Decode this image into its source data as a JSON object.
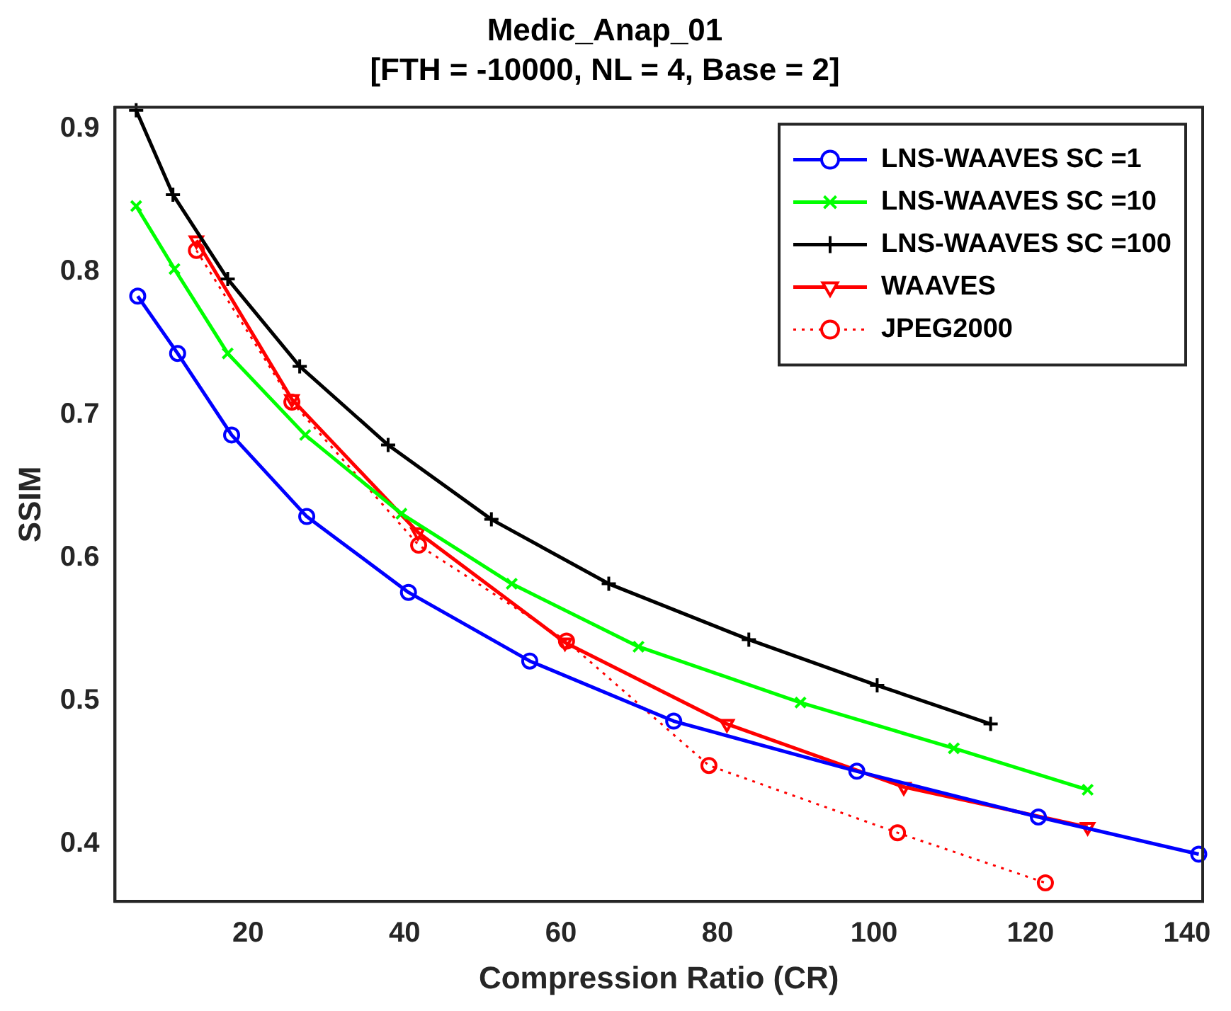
{
  "chart_data": {
    "type": "line",
    "title": "Medic_Anap_01",
    "subtitle": "[FTH = -10000, NL = 4, Base = 2]",
    "xlabel": "Compression Ratio (CR)",
    "ylabel": "SSIM",
    "xlim": [
      3,
      142
    ],
    "xticks": [
      20,
      40,
      60,
      80,
      100,
      120,
      140
    ],
    "ylim": [
      0.36,
      0.915
    ],
    "yticks": [
      0.4,
      0.5,
      0.6,
      0.7,
      0.8,
      0.9
    ],
    "grid": false,
    "legend": "top right",
    "series": [
      {
        "name": "LNS-WAAVES SC =1",
        "color": "#0000ff",
        "marker": "circle",
        "line_style": "solid",
        "x": [
          5.9,
          11,
          17.9,
          27.5,
          40.5,
          56,
          74.4,
          97.8,
          121,
          141.5
        ],
        "values": [
          0.783,
          0.743,
          0.686,
          0.629,
          0.576,
          0.528,
          0.486,
          0.451,
          0.419,
          0.393
        ]
      },
      {
        "name": "LNS-WAAVES SC =10",
        "color": "#00ff00",
        "marker": "cross",
        "line_style": "solid",
        "x": [
          5.7,
          10.6,
          17.4,
          27.3,
          39.6,
          53.7,
          69.9,
          90.6,
          110.2,
          127.3
        ],
        "values": [
          0.846,
          0.802,
          0.743,
          0.686,
          0.631,
          0.582,
          0.538,
          0.499,
          0.467,
          0.438
        ]
      },
      {
        "name": "LNS-WAAVES SC =100",
        "color": "#000000",
        "marker": "plus",
        "line_style": "solid",
        "x": [
          5.7,
          10.4,
          17.4,
          26.6,
          37.9,
          51.1,
          66.1,
          84,
          100.4,
          114.9
        ],
        "values": [
          0.913,
          0.854,
          0.795,
          0.734,
          0.679,
          0.627,
          0.582,
          0.543,
          0.511,
          0.484
        ]
      },
      {
        "name": "WAAVES",
        "color": "#ff0000",
        "marker": "triangle",
        "line_style": "solid",
        "x": [
          13.4,
          25.6,
          41.7,
          60.5,
          81.2,
          103.8,
          127.3
        ],
        "values": [
          0.822,
          0.711,
          0.618,
          0.541,
          0.484,
          0.44,
          0.412
        ]
      },
      {
        "name": "JPEG2000",
        "color": "#ff0000",
        "marker": "circle",
        "line_style": "dotted",
        "x": [
          13.4,
          25.6,
          41.8,
          60.7,
          78.9,
          103,
          121.9
        ],
        "values": [
          0.815,
          0.709,
          0.609,
          0.542,
          0.455,
          0.408,
          0.373
        ]
      }
    ]
  }
}
